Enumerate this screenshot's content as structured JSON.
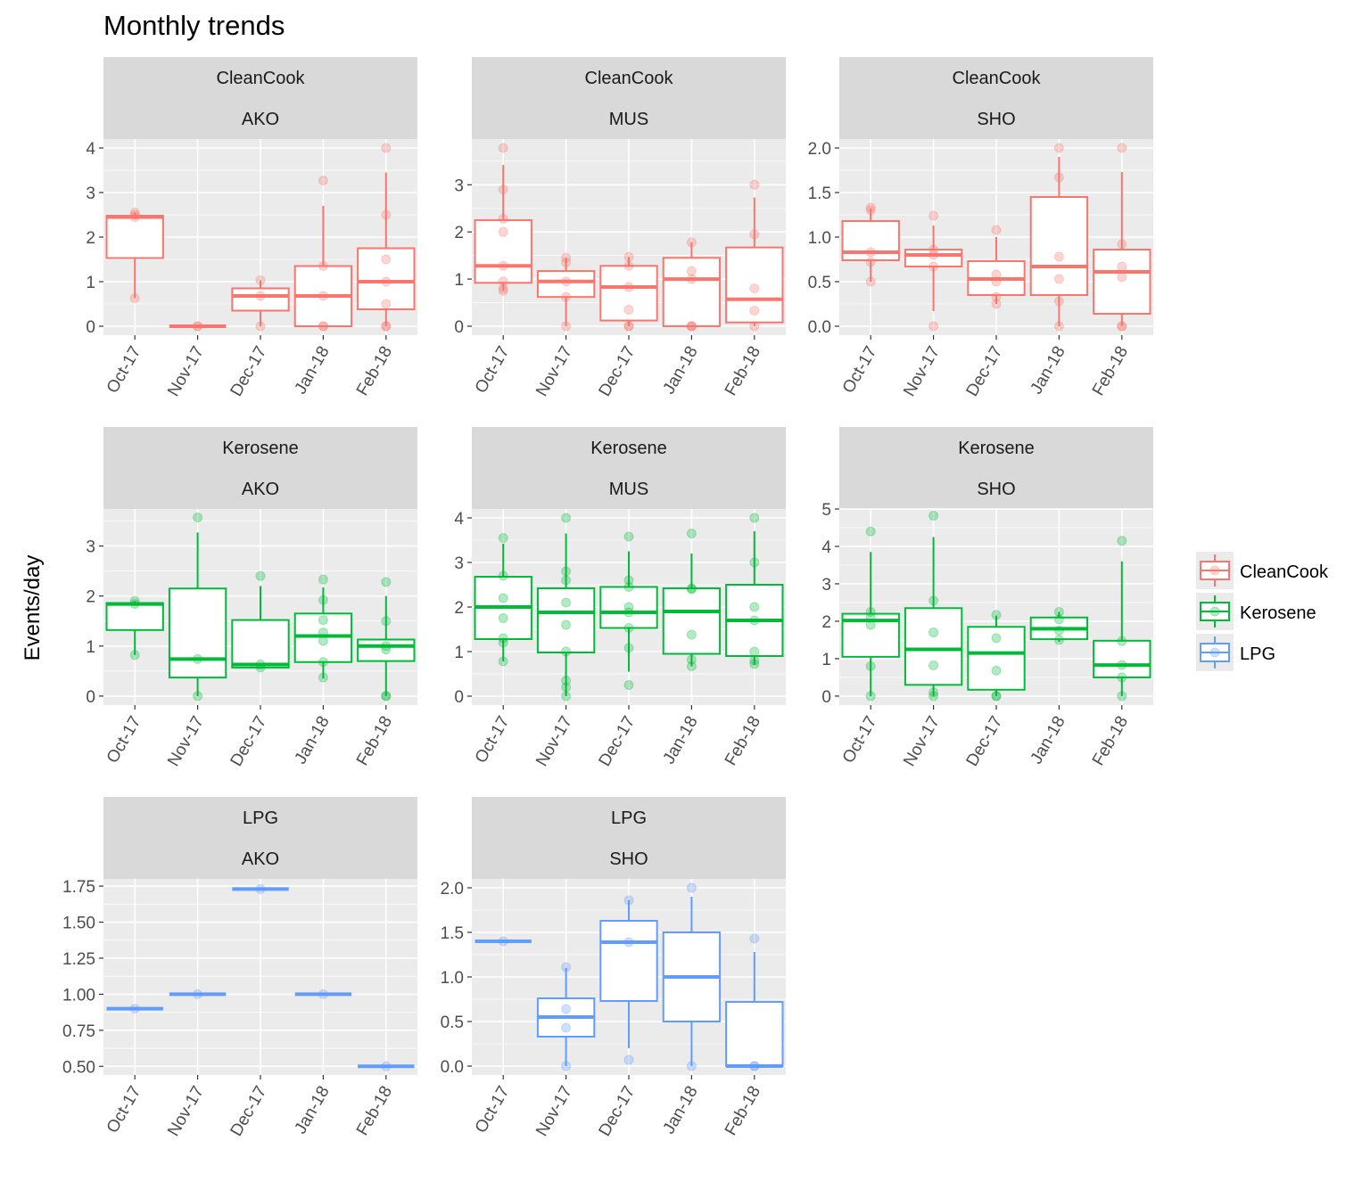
{
  "chart_data": {
    "type": "boxplot",
    "title": "Monthly trends",
    "ylabel": "Events/day",
    "xlabel": "",
    "categories": [
      "Oct-17",
      "Nov-17",
      "Dec-17",
      "Jan-18",
      "Feb-18"
    ],
    "legend": {
      "title": "",
      "placement": "right",
      "entries": [
        {
          "name": "CleanCook",
          "color": "#F8766D"
        },
        {
          "name": "Kerosene",
          "color": "#00BA38"
        },
        {
          "name": "LPG",
          "color": "#619CFF"
        }
      ]
    },
    "grid": true,
    "panels": [
      {
        "strip": [
          "CleanCook",
          "AKO"
        ],
        "fuel": "CleanCook",
        "ylim": [
          -0.2,
          4.2
        ],
        "yticks": [
          "0",
          "1",
          "2",
          "3",
          "4"
        ],
        "boxes": [
          {
            "x": "Oct-17",
            "q1": 1.53,
            "median": 2.45,
            "q3": 2.48,
            "whisker_low": 0.63,
            "whisker_high": 2.55,
            "points": [
              0.63,
              2.45,
              2.5,
              2.55
            ]
          },
          {
            "x": "Nov-17",
            "q1": 0,
            "median": 0,
            "q3": 0,
            "whisker_low": 0,
            "whisker_high": 0,
            "points": [
              0,
              0
            ]
          },
          {
            "x": "Dec-17",
            "q1": 0.35,
            "median": 0.68,
            "q3": 0.85,
            "whisker_low": 0,
            "whisker_high": 1.03,
            "points": [
              0,
              0.68,
              1.03
            ]
          },
          {
            "x": "Jan-18",
            "q1": 0,
            "median": 0.68,
            "q3": 1.35,
            "whisker_low": 0,
            "whisker_high": 2.7,
            "points": [
              0,
              0,
              0.68,
              1.35,
              3.27
            ]
          },
          {
            "x": "Feb-18",
            "q1": 0.38,
            "median": 1.0,
            "q3": 1.75,
            "whisker_low": 0,
            "whisker_high": 3.45,
            "points": [
              0,
              0,
              0.5,
              1.0,
              1.5,
              2.5,
              4.0
            ]
          }
        ]
      },
      {
        "strip": [
          "CleanCook",
          "MUS"
        ],
        "fuel": "CleanCook",
        "ylim": [
          -0.19,
          3.97
        ],
        "yticks": [
          "0",
          "1",
          "2",
          "3"
        ],
        "boxes": [
          {
            "x": "Oct-17",
            "q1": 0.92,
            "median": 1.28,
            "q3": 2.25,
            "whisker_low": 0.75,
            "whisker_high": 3.42,
            "points": [
              0.75,
              0.8,
              0.95,
              1.28,
              2.0,
              2.28,
              2.9,
              3.78
            ]
          },
          {
            "x": "Nov-17",
            "q1": 0.62,
            "median": 0.95,
            "q3": 1.17,
            "whisker_low": 0,
            "whisker_high": 1.45,
            "points": [
              0,
              0.62,
              0.95,
              1.35,
              1.45
            ]
          },
          {
            "x": "Dec-17",
            "q1": 0.12,
            "median": 0.83,
            "q3": 1.28,
            "whisker_low": 0,
            "whisker_high": 1.47,
            "points": [
              0,
              0,
              0.35,
              0.83,
              1.28,
              1.47
            ]
          },
          {
            "x": "Jan-18",
            "q1": 0,
            "median": 1.0,
            "q3": 1.45,
            "whisker_low": 0,
            "whisker_high": 1.78,
            "points": [
              0,
              0,
              0,
              1.0,
              1.17,
              1.78
            ]
          },
          {
            "x": "Feb-18",
            "q1": 0.08,
            "median": 0.57,
            "q3": 1.67,
            "whisker_low": 0,
            "whisker_high": 2.73,
            "points": [
              0,
              0.33,
              0.8,
              1.95,
              3.0
            ]
          }
        ]
      },
      {
        "strip": [
          "CleanCook",
          "SHO"
        ],
        "fuel": "CleanCook",
        "ylim": [
          -0.1,
          2.1
        ],
        "yticks": [
          "0.0",
          "0.5",
          "1.0",
          "1.5",
          "2.0"
        ],
        "boxes": [
          {
            "x": "Oct-17",
            "q1": 0.74,
            "median": 0.83,
            "q3": 1.18,
            "whisker_low": 0.5,
            "whisker_high": 1.32,
            "points": [
              0.5,
              0.72,
              0.83,
              1.3,
              1.33
            ]
          },
          {
            "x": "Nov-17",
            "q1": 0.67,
            "median": 0.8,
            "q3": 0.86,
            "whisker_low": 0.17,
            "whisker_high": 1.13,
            "points": [
              0,
              0.67,
              0.8,
              0.86,
              1.24
            ]
          },
          {
            "x": "Dec-17",
            "q1": 0.35,
            "median": 0.53,
            "q3": 0.73,
            "whisker_low": 0.25,
            "whisker_high": 1.0,
            "points": [
              0.25,
              0.33,
              0.5,
              0.58,
              1.08
            ]
          },
          {
            "x": "Jan-18",
            "q1": 0.35,
            "median": 0.67,
            "q3": 1.45,
            "whisker_low": 0,
            "whisker_high": 1.9,
            "points": [
              0,
              0.28,
              0.53,
              0.78,
              1.67,
              2.0
            ]
          },
          {
            "x": "Feb-18",
            "q1": 0.14,
            "median": 0.61,
            "q3": 0.86,
            "whisker_low": 0,
            "whisker_high": 1.73,
            "points": [
              0,
              0,
              0.55,
              0.67,
              0.92,
              2.0
            ]
          }
        ]
      },
      {
        "strip": [
          "Kerosene",
          "AKO"
        ],
        "fuel": "Kerosene",
        "ylim": [
          -0.18,
          3.74
        ],
        "yticks": [
          "0",
          "1",
          "2",
          "3"
        ],
        "boxes": [
          {
            "x": "Oct-17",
            "q1": 1.32,
            "median": 1.84,
            "q3": 1.86,
            "whisker_low": 0.82,
            "whisker_high": 1.9,
            "points": [
              0.82,
              1.84,
              1.9
            ]
          },
          {
            "x": "Nov-17",
            "q1": 0.37,
            "median": 0.74,
            "q3": 2.15,
            "whisker_low": 0,
            "whisker_high": 3.27,
            "points": [
              0,
              0.74,
              3.57
            ]
          },
          {
            "x": "Dec-17",
            "q1": 0.57,
            "median": 0.63,
            "q3": 1.52,
            "whisker_low": 0.57,
            "whisker_high": 2.2,
            "points": [
              0.57,
              0.63,
              2.4
            ]
          },
          {
            "x": "Jan-18",
            "q1": 0.68,
            "median": 1.2,
            "q3": 1.65,
            "whisker_low": 0.35,
            "whisker_high": 2.17,
            "points": [
              0.37,
              0.68,
              1.1,
              1.27,
              1.52,
              1.92,
              2.33
            ]
          },
          {
            "x": "Feb-18",
            "q1": 0.7,
            "median": 1.0,
            "q3": 1.13,
            "whisker_low": 0,
            "whisker_high": 2.0,
            "points": [
              0,
              0,
              0.93,
              1.0,
              1.5,
              2.28
            ]
          }
        ]
      },
      {
        "strip": [
          "Kerosene",
          "MUS"
        ],
        "fuel": "Kerosene",
        "ylim": [
          -0.2,
          4.2
        ],
        "yticks": [
          "0",
          "1",
          "2",
          "3",
          "4"
        ],
        "boxes": [
          {
            "x": "Oct-17",
            "q1": 1.28,
            "median": 2.0,
            "q3": 2.68,
            "whisker_low": 0.78,
            "whisker_high": 3.42,
            "points": [
              0.78,
              1.2,
              1.3,
              1.75,
              2.2,
              2.7,
              3.55
            ]
          },
          {
            "x": "Nov-17",
            "q1": 0.98,
            "median": 1.88,
            "q3": 2.42,
            "whisker_low": 0,
            "whisker_high": 3.65,
            "points": [
              0,
              0.2,
              0.35,
              1.0,
              1.6,
              2.1,
              2.6,
              2.8,
              4.0
            ]
          },
          {
            "x": "Dec-17",
            "q1": 1.53,
            "median": 1.88,
            "q3": 2.45,
            "whisker_low": 0.55,
            "whisker_high": 3.25,
            "points": [
              0.25,
              1.08,
              1.53,
              1.88,
              2.0,
              2.45,
              2.6,
              3.58
            ]
          },
          {
            "x": "Jan-18",
            "q1": 0.95,
            "median": 1.9,
            "q3": 2.42,
            "whisker_low": 0.67,
            "whisker_high": 3.2,
            "points": [
              0.67,
              0.82,
              1.38,
              2.4,
              2.42,
              3.65
            ]
          },
          {
            "x": "Feb-18",
            "q1": 0.9,
            "median": 1.7,
            "q3": 2.5,
            "whisker_low": 0.7,
            "whisker_high": 3.7,
            "points": [
              0.72,
              0.8,
              1.0,
              1.7,
              2.0,
              3.0,
              4.0
            ]
          }
        ]
      },
      {
        "strip": [
          "Kerosene",
          "SHO"
        ],
        "fuel": "Kerosene",
        "ylim": [
          -0.24,
          5.0
        ],
        "yticks": [
          "0",
          "1",
          "2",
          "3",
          "4",
          "5"
        ],
        "boxes": [
          {
            "x": "Oct-17",
            "q1": 1.05,
            "median": 2.02,
            "q3": 2.2,
            "whisker_low": 0,
            "whisker_high": 3.85,
            "points": [
              0,
              0.8,
              1.9,
              2.1,
              2.25,
              4.4
            ]
          },
          {
            "x": "Nov-17",
            "q1": 0.3,
            "median": 1.25,
            "q3": 2.35,
            "whisker_low": 0,
            "whisker_high": 4.25,
            "points": [
              0,
              0.1,
              0.82,
              1.7,
              2.55,
              4.82
            ]
          },
          {
            "x": "Dec-17",
            "q1": 0.17,
            "median": 1.15,
            "q3": 1.85,
            "whisker_low": 0,
            "whisker_high": 2.15,
            "points": [
              0,
              0,
              0.68,
              1.55,
              2.17
            ]
          },
          {
            "x": "Jan-18",
            "q1": 1.52,
            "median": 1.8,
            "q3": 2.1,
            "whisker_low": 1.45,
            "whisker_high": 2.25,
            "points": [
              1.5,
              1.75,
              2.05,
              2.25
            ]
          },
          {
            "x": "Feb-18",
            "q1": 0.5,
            "median": 0.83,
            "q3": 1.48,
            "whisker_low": 0,
            "whisker_high": 3.6,
            "points": [
              0,
              0.5,
              0.83,
              1.47,
              4.15
            ]
          }
        ]
      },
      {
        "strip": [
          "LPG",
          "AKO"
        ],
        "fuel": "LPG",
        "ylim": [
          0.44,
          1.8
        ],
        "yticks": [
          "0.50",
          "0.75",
          "1.00",
          "1.25",
          "1.50",
          "1.75"
        ],
        "boxes": [
          {
            "x": "Oct-17",
            "q1": 0.9,
            "median": 0.9,
            "q3": 0.9,
            "whisker_low": 0.9,
            "whisker_high": 0.9,
            "points": [
              0.9
            ]
          },
          {
            "x": "Nov-17",
            "q1": 1.0,
            "median": 1.0,
            "q3": 1.0,
            "whisker_low": 1.0,
            "whisker_high": 1.0,
            "points": [
              1.0
            ]
          },
          {
            "x": "Dec-17",
            "q1": 1.73,
            "median": 1.73,
            "q3": 1.73,
            "whisker_low": 1.73,
            "whisker_high": 1.73,
            "points": [
              1.73
            ]
          },
          {
            "x": "Jan-18",
            "q1": 1.0,
            "median": 1.0,
            "q3": 1.0,
            "whisker_low": 1.0,
            "whisker_high": 1.0,
            "points": [
              1.0
            ]
          },
          {
            "x": "Feb-18",
            "q1": 0.5,
            "median": 0.5,
            "q3": 0.5,
            "whisker_low": 0.5,
            "whisker_high": 0.5,
            "points": [
              0.5
            ]
          }
        ]
      },
      {
        "strip": [
          "LPG",
          "SHO"
        ],
        "fuel": "LPG",
        "ylim": [
          -0.1,
          2.1
        ],
        "yticks": [
          "0.0",
          "0.5",
          "1.0",
          "1.5",
          "2.0"
        ],
        "boxes": [
          {
            "x": "Oct-17",
            "q1": 1.4,
            "median": 1.4,
            "q3": 1.4,
            "whisker_low": 1.4,
            "whisker_high": 1.4,
            "points": [
              1.4
            ]
          },
          {
            "x": "Nov-17",
            "q1": 0.33,
            "median": 0.55,
            "q3": 0.76,
            "whisker_low": 0,
            "whisker_high": 1.1,
            "points": [
              0,
              0.43,
              0.64,
              1.11
            ]
          },
          {
            "x": "Dec-17",
            "q1": 0.73,
            "median": 1.39,
            "q3": 1.63,
            "whisker_low": 0.2,
            "whisker_high": 1.86,
            "points": [
              0.07,
              1.39,
              1.86
            ]
          },
          {
            "x": "Jan-18",
            "q1": 0.5,
            "median": 1.0,
            "q3": 1.5,
            "whisker_low": 0,
            "whisker_high": 1.9,
            "points": [
              0,
              2.0
            ]
          },
          {
            "x": "Feb-18",
            "q1": 0,
            "median": 0,
            "q3": 0.72,
            "whisker_low": 0,
            "whisker_high": 1.28,
            "points": [
              0,
              0,
              1.43
            ]
          }
        ]
      }
    ]
  }
}
